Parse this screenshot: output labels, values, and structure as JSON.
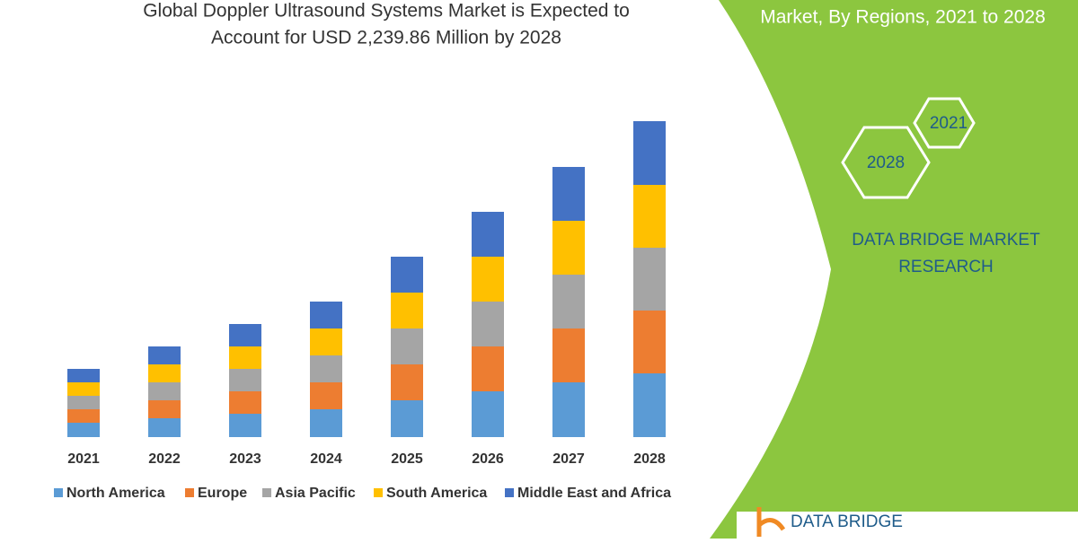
{
  "chart_data": {
    "type": "stacked_bar",
    "title": [
      "Global Doppler Ultrasound Systems Market is Expected to",
      "Account for USD 2,239.86 Million by 2028"
    ],
    "categories": [
      "2021",
      "2022",
      "2023",
      "2024",
      "2025",
      "2026",
      "2027",
      "2028"
    ],
    "series": [
      {
        "name": "North America",
        "color": "#5b9bd5",
        "values": [
          16,
          21,
          26,
          31,
          41,
          51,
          61,
          71
        ]
      },
      {
        "name": "Europe",
        "color": "#ed7d31",
        "values": [
          15,
          20,
          25,
          30,
          40,
          50,
          60,
          70
        ]
      },
      {
        "name": "Asia Pacific",
        "color": "#a5a5a5",
        "values": [
          15,
          20,
          25,
          30,
          40,
          50,
          60,
          70
        ]
      },
      {
        "name": "South America",
        "color": "#ffc000",
        "values": [
          15,
          20,
          25,
          30,
          40,
          50,
          60,
          70
        ]
      },
      {
        "name": "Middle East and Africa",
        "color": "#4472c4",
        "values": [
          15,
          20,
          25,
          30,
          40,
          50,
          60,
          71
        ]
      }
    ]
  },
  "side_panel": {
    "heading": "Market, By Regions, 2021 to 2028",
    "hexagons": [
      "2021",
      "2028"
    ],
    "brand": [
      "DATA BRIDGE MARKET",
      "RESEARCH"
    ],
    "logo": "DATA BRIDGE"
  }
}
